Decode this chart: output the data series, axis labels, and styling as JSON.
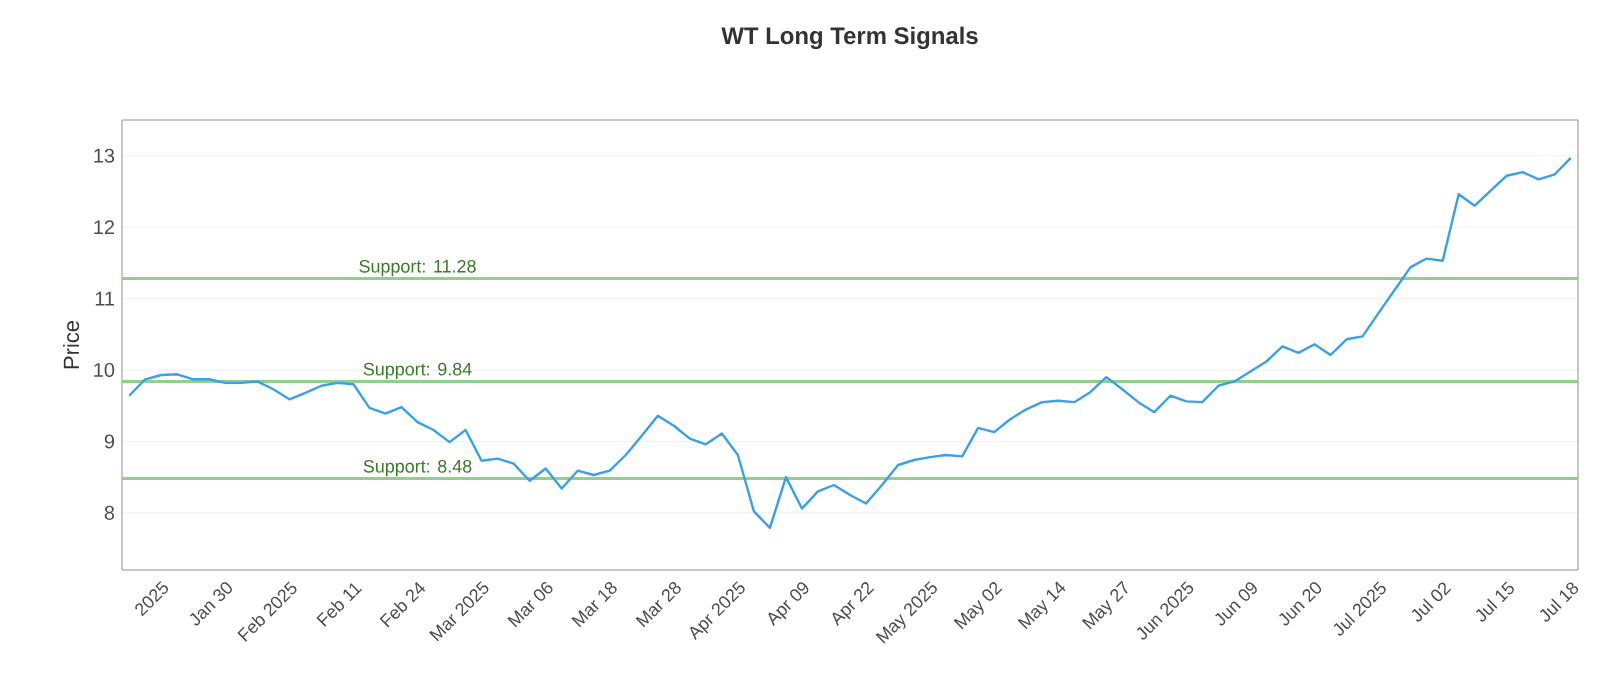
{
  "chart_data": {
    "type": "line",
    "title": "WT Long Term Signals",
    "ylabel": "Price",
    "categories": [
      null,
      null,
      "2025",
      null,
      null,
      null,
      "Jan 30",
      null,
      null,
      null,
      "Feb 2025",
      null,
      null,
      null,
      "Feb 11",
      null,
      null,
      null,
      "Feb 24",
      null,
      null,
      null,
      "Mar 2025",
      null,
      null,
      null,
      "Mar 06",
      null,
      null,
      null,
      "Mar 18",
      null,
      null,
      null,
      "Mar 28",
      null,
      null,
      null,
      "Apr 2025",
      null,
      null,
      null,
      "Apr 09",
      null,
      null,
      null,
      "Apr 22",
      null,
      null,
      null,
      "May 2025",
      null,
      null,
      null,
      "May 02",
      null,
      null,
      null,
      "May 14",
      null,
      null,
      null,
      "May 27",
      null,
      null,
      null,
      "Jun 2025",
      null,
      null,
      null,
      "Jun 09",
      null,
      null,
      null,
      "Jun 20",
      null,
      null,
      null,
      "Jul 2025",
      null,
      null,
      null,
      "Jul 02",
      null,
      null,
      null,
      "Jul 15",
      null,
      null,
      null,
      "Jul 18"
    ],
    "series": [
      {
        "color": "#3aa0e8",
        "values": [
          9.64,
          9.87,
          9.93,
          9.94,
          9.87,
          9.87,
          9.82,
          9.82,
          9.84,
          9.73,
          9.59,
          9.68,
          9.78,
          9.82,
          9.8,
          9.47,
          9.39,
          9.48,
          9.27,
          9.16,
          8.99,
          9.16,
          8.73,
          8.76,
          8.69,
          8.45,
          8.62,
          8.34,
          8.59,
          8.53,
          8.59,
          8.81,
          9.08,
          9.36,
          9.22,
          9.04,
          8.96,
          9.11,
          8.81,
          8.02,
          7.79,
          8.5,
          8.06,
          8.3,
          8.39,
          8.25,
          8.13,
          8.39,
          8.67,
          8.74,
          8.78,
          8.81,
          8.79,
          9.19,
          9.13,
          9.31,
          9.45,
          9.55,
          9.57,
          9.55,
          9.69,
          9.9,
          9.73,
          9.55,
          9.41,
          9.64,
          9.56,
          9.55,
          9.78,
          9.84,
          9.98,
          10.12,
          10.33,
          10.24,
          10.36,
          10.21,
          10.43,
          10.47,
          10.8,
          11.12,
          11.44,
          11.56,
          11.53,
          12.46,
          12.3,
          12.51,
          12.72,
          12.77,
          12.67,
          12.74,
          12.97
        ]
      }
    ],
    "ylim": [
      7.2,
      13.5
    ],
    "yticks": [
      8,
      9,
      10,
      11,
      12,
      13
    ],
    "grid": "y",
    "marker": "none",
    "line_style": "solid",
    "ref_lines": [
      {
        "axis": "y",
        "value": 11.28,
        "label": "Support: 11.28",
        "color": "#8fd18a"
      },
      {
        "axis": "y",
        "value": 9.84,
        "label": "Support: 9.84",
        "color": "#8fd18a"
      },
      {
        "axis": "y",
        "value": 8.48,
        "label": "Support: 8.48",
        "color": "#8fd18a"
      }
    ]
  }
}
